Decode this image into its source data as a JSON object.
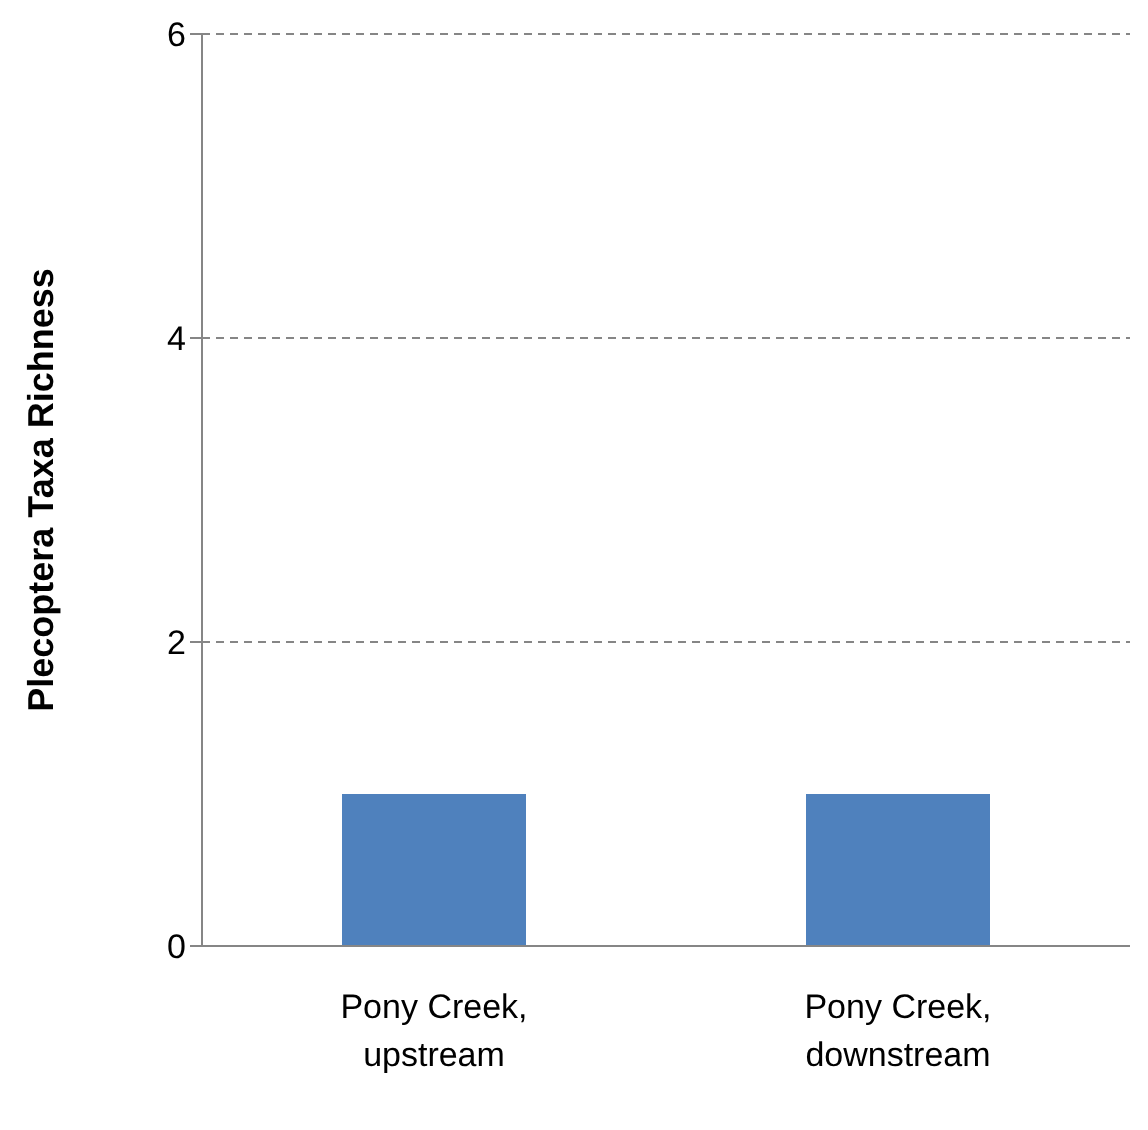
{
  "chart_data": {
    "type": "bar",
    "ylabel": "Plecoptera Taxa Richness",
    "categories": [
      "Pony Creek, upstream",
      "Pony Creek, downstream"
    ],
    "values": [
      1,
      1
    ],
    "color": "#4f81bd",
    "ylim": [
      0,
      6
    ],
    "yticks": [
      0,
      2,
      4,
      6
    ],
    "grid": "y"
  }
}
